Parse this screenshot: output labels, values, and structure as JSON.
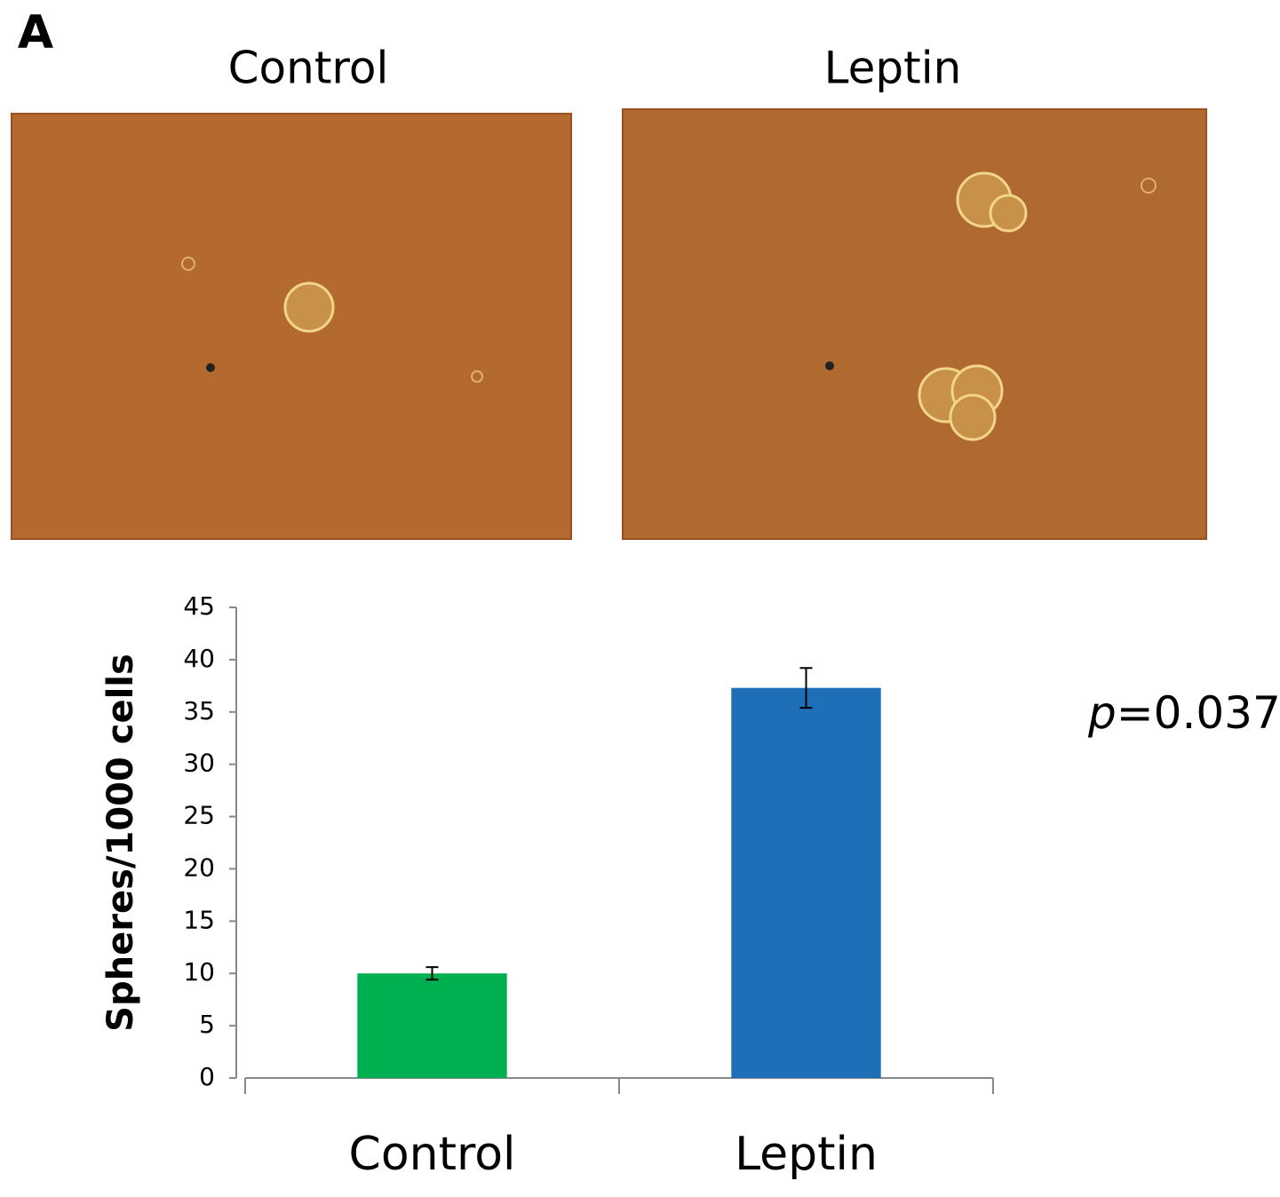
{
  "panel_label": "A",
  "image_titles": [
    "Control",
    "Leptin"
  ],
  "chart_data": {
    "type": "bar",
    "y_label": "Spheres/1000 cells",
    "categories": [
      "Control",
      "Leptin"
    ],
    "values": [
      10,
      37.3
    ],
    "errors": [
      0.6,
      1.9
    ],
    "colors": [
      "#00b050",
      "#1f6fb8"
    ],
    "ylim": [
      0,
      45
    ],
    "yticks": [
      0,
      5,
      10,
      15,
      20,
      25,
      30,
      35,
      40,
      45
    ],
    "annotation": {
      "italic": "p",
      "text": "=0.037"
    }
  }
}
